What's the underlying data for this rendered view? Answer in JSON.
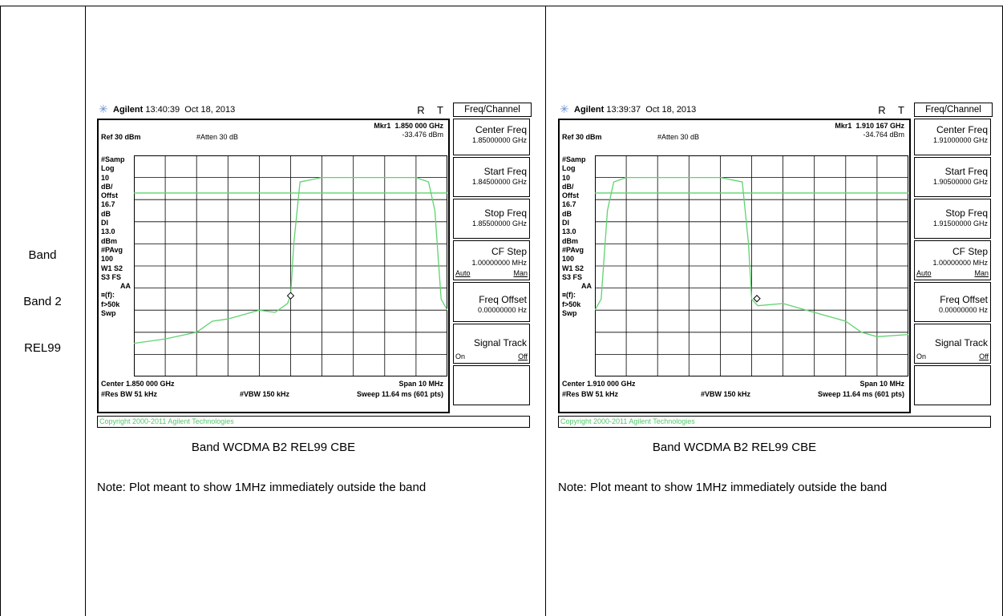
{
  "row": {
    "label_1": "Band",
    "label_2": "Band 2",
    "label_3": "REL99"
  },
  "panels": [
    {
      "header": {
        "brand": "Agilent",
        "time": "13:40:39",
        "date": "Oct 18, 2013",
        "rt": "R T"
      },
      "marker": {
        "label": "Mkr1",
        "freq": "1.850 000 GHz",
        "level": "-33.476 dBm"
      },
      "ref": "Ref 30 dBm",
      "atten": "#Atten 30 dB",
      "side_labels": [
        "#Samp",
        "Log",
        "10",
        "dB/",
        "Offst",
        "16.7",
        "dB",
        "DI",
        "13.0",
        "dBm",
        "#PAvg",
        "100",
        "W1  S2",
        "S3  FS",
        "AA",
        "¤(f):",
        "f>50k",
        "Swp"
      ],
      "center": "Center 1.850 000 GHz",
      "span": "Span 10 MHz",
      "res_bw": "#Res BW 51 kHz",
      "vbw": "#VBW 150 kHz",
      "sweep": "Sweep 11.64 ms (601 pts)",
      "copyright": "Copyright 2000-2011 Agilent Technologies",
      "menu": {
        "title": "Freq/Channel",
        "center_freq": {
          "label": "Center Freq",
          "value": "1.85000000 GHz"
        },
        "start_freq": {
          "label": "Start Freq",
          "value": "1.84500000 GHz"
        },
        "stop_freq": {
          "label": "Stop Freq",
          "value": "1.85500000 GHz"
        },
        "cf_step": {
          "label": "CF Step",
          "value": "1.00000000 MHz",
          "opt_l": "Auto",
          "opt_r": "Man"
        },
        "freq_offset": {
          "label": "Freq Offset",
          "value": "0.00000000  Hz"
        },
        "signal_track": {
          "label": "Signal Track",
          "opt_l": "On",
          "opt_r": "Off"
        }
      },
      "caption": "Band WCDMA B2 REL99 CBE",
      "note": "Note: Plot meant to show 1MHz immediately outside the band",
      "colors": {
        "trace": "#5fd36f",
        "display_line": "#5fd36f",
        "grid": "#000000"
      },
      "chart_data": {
        "type": "line",
        "x_unit": "MHz",
        "xlim": [
          1845,
          1855
        ],
        "ylim": [
          -70,
          30
        ],
        "display_line_dbm": 13.0,
        "x": [
          1845,
          1846,
          1847,
          1847.5,
          1848,
          1848.5,
          1849,
          1849.5,
          1849.9,
          1850,
          1850.1,
          1850.3,
          1851,
          1852,
          1853,
          1854,
          1854.4,
          1854.6,
          1854.8,
          1855
        ],
        "y": [
          -55,
          -53,
          -50,
          -45,
          -44,
          -42,
          -40,
          -41,
          -37,
          -33.5,
          -10,
          18,
          20,
          20,
          20,
          20,
          18,
          5,
          -35,
          -40
        ]
      }
    },
    {
      "header": {
        "brand": "Agilent",
        "time": "13:39:37",
        "date": "Oct 18, 2013",
        "rt": "R T"
      },
      "marker": {
        "label": "Mkr1",
        "freq": "1.910 167 GHz",
        "level": "-34.764 dBm"
      },
      "ref": "Ref 30 dBm",
      "atten": "#Atten 30 dB",
      "side_labels": [
        "#Samp",
        "Log",
        "10",
        "dB/",
        "Offst",
        "16.7",
        "dB",
        "DI",
        "13.0",
        "dBm",
        "#PAvg",
        "100",
        "W1  S2",
        "S3  FS",
        "AA",
        "¤(f):",
        "f>50k",
        "Swp"
      ],
      "center": "Center 1.910 000 GHz",
      "span": "Span 10 MHz",
      "res_bw": "#Res BW 51 kHz",
      "vbw": "#VBW 150 kHz",
      "sweep": "Sweep 11.64 ms (601 pts)",
      "copyright": "Copyright 2000-2011 Agilent Technologies",
      "menu": {
        "title": "Freq/Channel",
        "center_freq": {
          "label": "Center Freq",
          "value": "1.91000000 GHz"
        },
        "start_freq": {
          "label": "Start Freq",
          "value": "1.90500000 GHz"
        },
        "stop_freq": {
          "label": "Stop Freq",
          "value": "1.91500000 GHz"
        },
        "cf_step": {
          "label": "CF Step",
          "value": "1.00000000 MHz",
          "opt_l": "Auto",
          "opt_r": "Man"
        },
        "freq_offset": {
          "label": "Freq Offset",
          "value": "0.00000000  Hz"
        },
        "signal_track": {
          "label": "Signal Track",
          "opt_l": "On",
          "opt_r": "Off"
        }
      },
      "caption": "Band WCDMA B2 REL99 CBE",
      "note": "Note: Plot meant to show 1MHz immediately outside the band",
      "colors": {
        "trace": "#5fd36f",
        "display_line": "#5fd36f",
        "grid": "#000000"
      },
      "chart_data": {
        "type": "line",
        "x_unit": "MHz",
        "xlim": [
          1905,
          1915
        ],
        "ylim": [
          -70,
          30
        ],
        "display_line_dbm": 13.0,
        "x": [
          1905,
          1905.2,
          1905.4,
          1905.6,
          1906,
          1907,
          1908,
          1909,
          1909.7,
          1909.9,
          1910,
          1910.2,
          1911,
          1912,
          1913,
          1913.5,
          1914,
          1915
        ],
        "y": [
          -40,
          -35,
          5,
          18,
          20,
          20,
          20,
          20,
          18,
          -10,
          -35,
          -38,
          -37,
          -41,
          -45,
          -50,
          -52,
          -51
        ]
      }
    }
  ]
}
